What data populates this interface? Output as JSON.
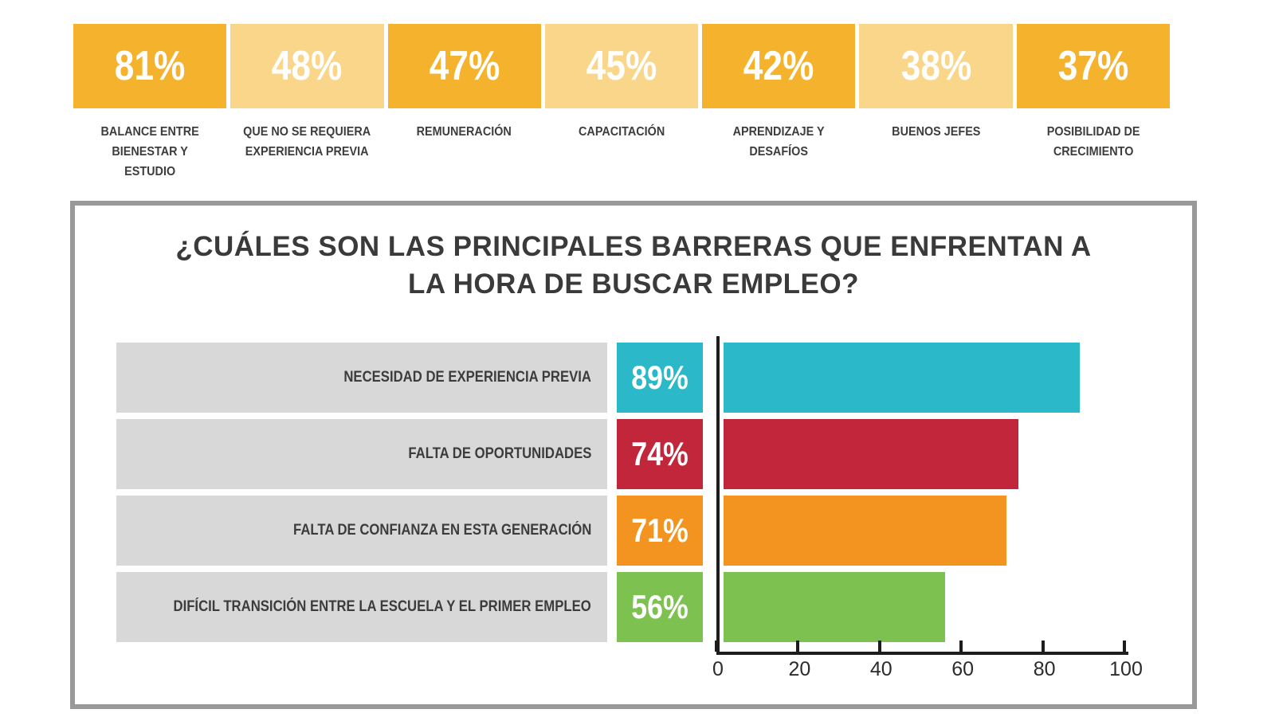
{
  "top_stats": {
    "colors": {
      "dark": "#F5B32D",
      "light": "#F9D68A"
    },
    "items": [
      {
        "value": "81%",
        "label": "BALANCE ENTRE BIENESTAR Y ESTUDIO",
        "tone": "dark"
      },
      {
        "value": "48%",
        "label": "QUE NO SE REQUIERA EXPERIENCIA PREVIA",
        "tone": "light"
      },
      {
        "value": "47%",
        "label": "REMUNERACIÓN",
        "tone": "dark"
      },
      {
        "value": "45%",
        "label": "CAPACITACIÓN",
        "tone": "light"
      },
      {
        "value": "42%",
        "label": "APRENDIZAJE Y DESAFÍOS",
        "tone": "dark"
      },
      {
        "value": "38%",
        "label": "BUENOS JEFES",
        "tone": "light"
      },
      {
        "value": "37%",
        "label": "POSIBILIDAD DE CRECIMIENTO",
        "tone": "dark"
      }
    ]
  },
  "chart_data": {
    "type": "bar",
    "orientation": "horizontal",
    "title": "¿CUÁLES SON LAS PRINCIPALES BARRERAS QUE ENFRENTAN A\nLA HORA DE BUSCAR EMPLEO?",
    "categories": [
      "NECESIDAD DE EXPERIENCIA PREVIA",
      "FALTA DE OPORTUNIDADES",
      "FALTA DE CONFIANZA EN ESTA GENERACIÓN",
      "DIFÍCIL TRANSICIÓN ENTRE LA ESCUELA Y EL PRIMER EMPLEO"
    ],
    "values": [
      89,
      74,
      71,
      56
    ],
    "value_labels": [
      "89%",
      "74%",
      "71%",
      "56%"
    ],
    "bar_colors": [
      "#2BB8C9",
      "#C2263B",
      "#F2941F",
      "#7DC250"
    ],
    "category_box_color": "#D8D8D8",
    "xlim": [
      0,
      100
    ],
    "x_ticks": [
      0,
      20,
      40,
      60,
      80,
      100
    ],
    "grid": false,
    "legend": false,
    "axis_color": "#1D1D1D"
  }
}
